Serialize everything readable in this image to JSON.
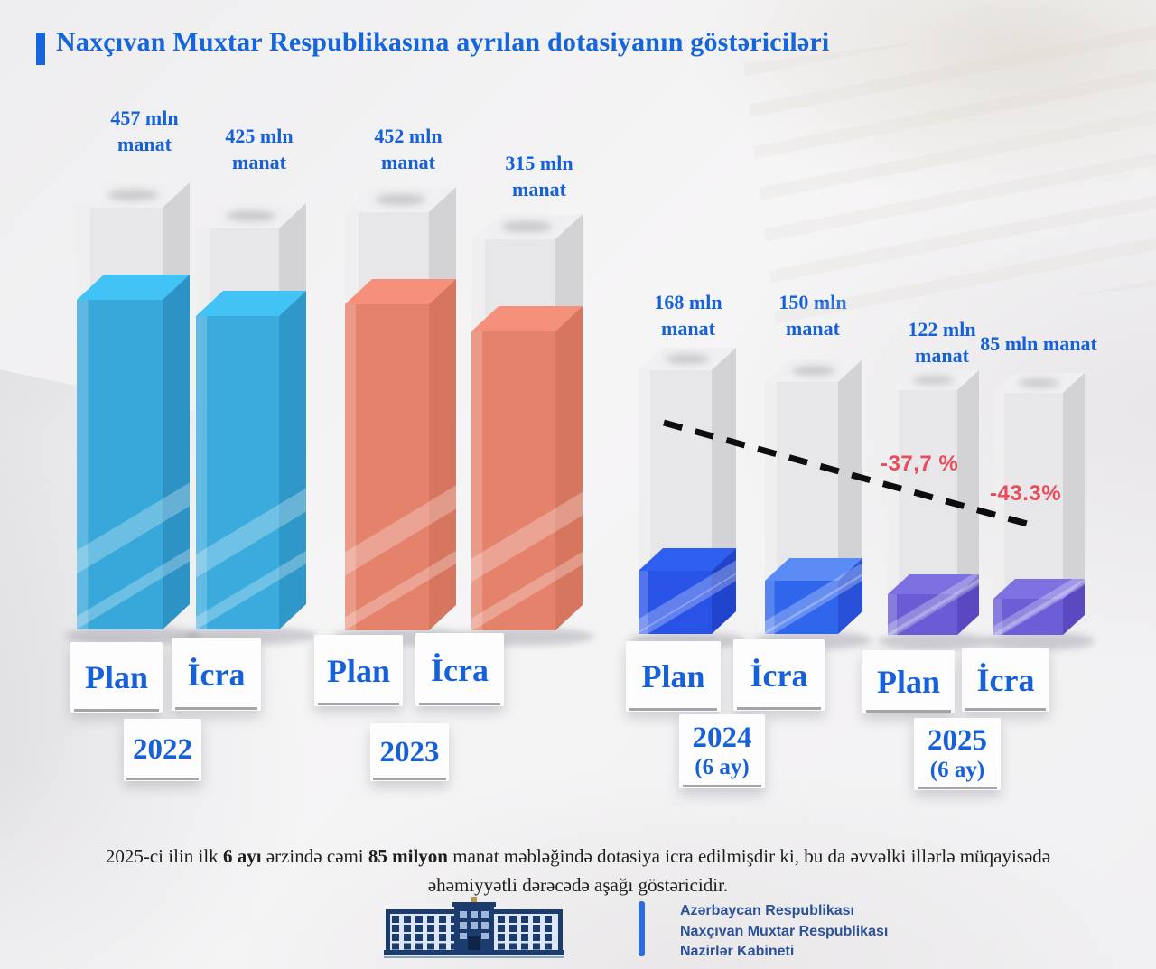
{
  "colors": {
    "accent_blue": "#1661d9",
    "title_blue": "#1565dc",
    "negative_red": "#e84b5a",
    "footer_blue": "#2b5199",
    "trend_line": "#0d0d0d"
  },
  "title": {
    "text": "Naxçıvan Muxtar Respublikasına ayrılan dotasiyanın  göstəriciləri"
  },
  "chart_data": {
    "type": "bar",
    "title": "Naxçıvan Muxtar Respublikasına ayrılan dotasiyanın göstəriciləri",
    "unit": "mln manat",
    "ylim": [
      0,
      500
    ],
    "grid": false,
    "column_color": {
      "front": "#e7e6e8",
      "top": "#f0eff1",
      "side": "#d3d2d5"
    },
    "groups": [
      {
        "id": "2022",
        "year_lines": [
          "2022"
        ],
        "bars": [
          {
            "key": "plan",
            "name": "Plan",
            "value": 457,
            "value_label": "457 mln manat",
            "color": {
              "front": "#38a7d9",
              "top": "#41c3f5",
              "side": "#2d93c5"
            }
          },
          {
            "key": "icra",
            "name": "İcra",
            "value": 425,
            "value_label": "425 mln manat",
            "color": {
              "front": "#3aabdc",
              "top": "#41c3f5",
              "side": "#2f98c9"
            }
          }
        ]
      },
      {
        "id": "2023",
        "year_lines": [
          "2023"
        ],
        "bars": [
          {
            "key": "plan",
            "name": "Plan",
            "value": 452,
            "value_label": "452 mln manat",
            "color": {
              "front": "#e4826b",
              "top": "#f5907a",
              "side": "#d7765e"
            }
          },
          {
            "key": "icra",
            "name": "İcra",
            "value": 315,
            "value_label": "315 mln manat",
            "color": {
              "front": "#e4826b",
              "top": "#f5907a",
              "side": "#d7765e"
            }
          }
        ]
      },
      {
        "id": "2024",
        "year_lines": [
          "2024",
          "(6 ay)"
        ],
        "bars": [
          {
            "key": "plan",
            "name": "Plan",
            "value": 168,
            "value_label": "168 mln manat",
            "color": {
              "front": "#2853e6",
              "top": "#2f5ff0",
              "side": "#2144cd"
            }
          },
          {
            "key": "icra",
            "name": "İcra",
            "value": 150,
            "value_label": "150 mln manat",
            "color": {
              "front": "#2f66ec",
              "top": "#5b8cf5",
              "side": "#2850d8"
            }
          }
        ]
      },
      {
        "id": "2025",
        "year_lines": [
          "2025",
          "(6 ay)"
        ],
        "bars": [
          {
            "key": "plan",
            "name": "Plan",
            "value": 122,
            "value_label": "122 mln manat",
            "color": {
              "front": "#6a5cd4",
              "top": "#7d70e0",
              "side": "#5948c0"
            }
          },
          {
            "key": "icra",
            "name": "İcra",
            "value": 85,
            "value_label": "85 mln manat",
            "color": {
              "front": "#6c5ed6",
              "top": "#7e71e1",
              "side": "#5a49c1"
            }
          }
        ]
      }
    ],
    "annotations": [
      {
        "text": "-37,7 %"
      },
      {
        "text": "-43.3%"
      }
    ],
    "trend_line": {
      "style": "dashed",
      "direction": "declining"
    }
  },
  "footnote": {
    "seg0": "2025-ci ilin ilk ",
    "seg1": "6 ayı",
    "seg2": " ərzində cəmi ",
    "seg3": "85 milyon",
    "seg4": " manat məbləğində dotasiya icra edilmişdir ki, bu da əvvəlki illərlə müqayisədə əhəmiyyətli dərəcədə aşağı göstəricidir."
  },
  "footer": {
    "org_lines": [
      "Azərbaycan Respublikası",
      "Naxçıvan Muxtar Respublikası",
      "Nazirlər Kabineti"
    ]
  }
}
